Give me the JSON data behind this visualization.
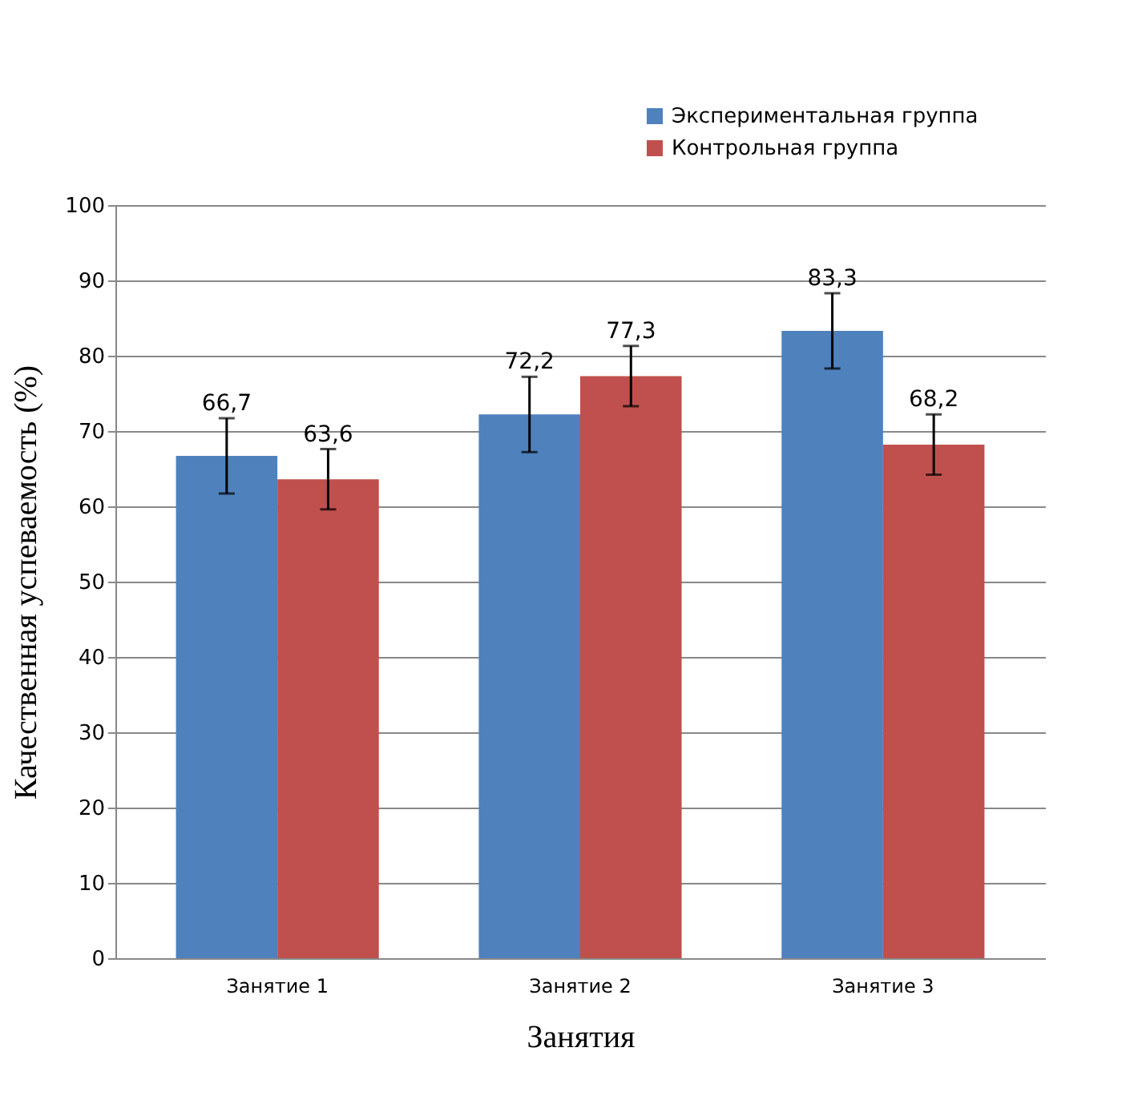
{
  "chart_data": {
    "type": "bar",
    "xlabel": "Занятия",
    "ylabel": "Качественная успеваемость (%)",
    "categories": [
      "Занятие 1",
      "Занятие 2",
      "Занятие 3"
    ],
    "series": [
      {
        "name": "Экспериментальная группа",
        "color": "#4f81bd",
        "values": [
          66.7,
          72.2,
          83.3
        ],
        "errors": [
          5,
          5,
          5
        ],
        "value_labels": [
          "66,7",
          "72,2",
          "83,3"
        ]
      },
      {
        "name": "Контрольная группа",
        "color": "#c0504d",
        "values": [
          63.6,
          77.3,
          68.2
        ],
        "errors": [
          4,
          4,
          4
        ],
        "value_labels": [
          "63,6",
          "77,3",
          "68,2"
        ]
      }
    ],
    "ylim": [
      0,
      100
    ],
    "yticks": [
      0,
      10,
      20,
      30,
      40,
      50,
      60,
      70,
      80,
      90,
      100
    ],
    "grid": "y",
    "legend": "top right"
  }
}
